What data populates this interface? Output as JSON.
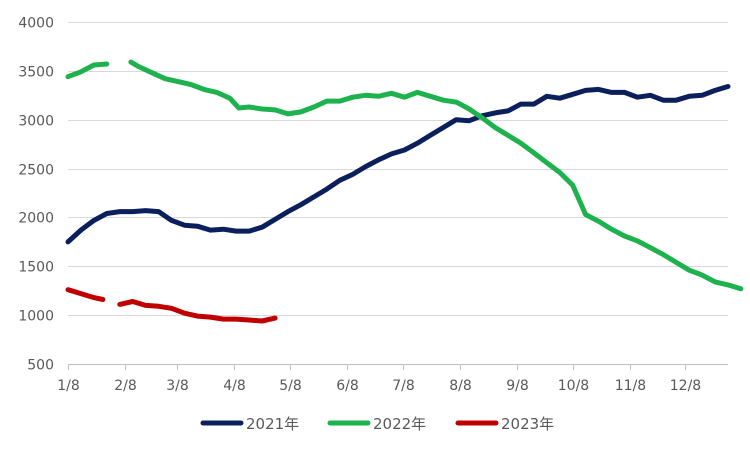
{
  "chart_data": {
    "type": "line",
    "title": "",
    "xlabel": "",
    "ylabel": "",
    "ylim": [
      500,
      4000
    ],
    "yticks": [
      500,
      1000,
      1500,
      2000,
      2500,
      3000,
      3500,
      4000
    ],
    "xlim": [
      0,
      51
    ],
    "xticks": [
      {
        "label": "1/8",
        "week": 0
      },
      {
        "label": "2/8",
        "week": 4.43
      },
      {
        "label": "3/8",
        "week": 8.43
      },
      {
        "label": "4/8",
        "week": 12.86
      },
      {
        "label": "5/8",
        "week": 17.14
      },
      {
        "label": "6/8",
        "week": 21.57
      },
      {
        "label": "7/8",
        "week": 25.86
      },
      {
        "label": "8/8",
        "week": 30.29
      },
      {
        "label": "9/8",
        "week": 34.71
      },
      {
        "label": "10/8",
        "week": 39.0
      },
      {
        "label": "11/8",
        "week": 43.43
      },
      {
        "label": "12/8",
        "week": 47.71
      }
    ],
    "grid": "horizontal",
    "legend_position": "bottom",
    "series": [
      {
        "name": "2021年",
        "color": "#0b1f5c",
        "segments": [
          [
            [
              0,
              1750
            ],
            [
              1,
              1870
            ],
            [
              2,
              1970
            ],
            [
              3,
              2040
            ],
            [
              4,
              2060
            ],
            [
              5,
              2060
            ],
            [
              6,
              2070
            ],
            [
              7,
              2060
            ],
            [
              8,
              1970
            ],
            [
              9,
              1920
            ],
            [
              10,
              1910
            ],
            [
              11,
              1870
            ],
            [
              12,
              1880
            ],
            [
              13,
              1860
            ],
            [
              14,
              1860
            ],
            [
              15,
              1900
            ],
            [
              16,
              1980
            ],
            [
              17,
              2060
            ],
            [
              18,
              2130
            ],
            [
              19,
              2210
            ],
            [
              20,
              2290
            ],
            [
              21,
              2380
            ],
            [
              22,
              2440
            ],
            [
              23,
              2520
            ],
            [
              24,
              2590
            ],
            [
              25,
              2650
            ],
            [
              26,
              2690
            ],
            [
              27,
              2760
            ],
            [
              28,
              2840
            ],
            [
              29,
              2920
            ],
            [
              30,
              3000
            ],
            [
              31,
              2990
            ],
            [
              32,
              3040
            ],
            [
              33,
              3070
            ],
            [
              34,
              3090
            ],
            [
              35,
              3160
            ],
            [
              36,
              3160
            ],
            [
              37,
              3240
            ],
            [
              38,
              3220
            ],
            [
              39,
              3260
            ],
            [
              40,
              3300
            ],
            [
              41,
              3310
            ],
            [
              42,
              3280
            ],
            [
              43,
              3280
            ],
            [
              44,
              3230
            ],
            [
              45,
              3250
            ],
            [
              46,
              3200
            ],
            [
              47,
              3200
            ],
            [
              48,
              3240
            ],
            [
              49,
              3250
            ],
            [
              50,
              3300
            ],
            [
              51,
              3340
            ]
          ]
        ]
      },
      {
        "name": "2022年",
        "color": "#1db24d",
        "segments": [
          [
            [
              0,
              3440
            ],
            [
              1,
              3490
            ],
            [
              2,
              3560
            ],
            [
              3,
              3570
            ]
          ],
          [
            [
              4.86,
              3590
            ],
            [
              5.5,
              3540
            ],
            [
              6.5,
              3480
            ],
            [
              7.5,
              3420
            ],
            [
              8.5,
              3390
            ],
            [
              9.5,
              3360
            ],
            [
              10.5,
              3310
            ],
            [
              11.5,
              3280
            ],
            [
              12.5,
              3220
            ],
            [
              13.2,
              3120
            ],
            [
              14,
              3130
            ],
            [
              15,
              3110
            ],
            [
              16,
              3100
            ],
            [
              17,
              3060
            ],
            [
              18,
              3080
            ],
            [
              19,
              3130
            ],
            [
              20,
              3190
            ],
            [
              21,
              3190
            ],
            [
              22,
              3230
            ],
            [
              23,
              3250
            ],
            [
              24,
              3240
            ],
            [
              25,
              3270
            ],
            [
              26,
              3230
            ],
            [
              27,
              3280
            ],
            [
              28,
              3240
            ],
            [
              29,
              3200
            ],
            [
              30,
              3180
            ],
            [
              31,
              3110
            ],
            [
              32,
              3020
            ],
            [
              33,
              2920
            ],
            [
              34,
              2840
            ],
            [
              35,
              2760
            ],
            [
              36,
              2660
            ],
            [
              37,
              2560
            ],
            [
              38,
              2460
            ],
            [
              39,
              2330
            ],
            [
              40,
              2030
            ],
            [
              41,
              1960
            ],
            [
              42,
              1880
            ],
            [
              43,
              1810
            ],
            [
              44,
              1760
            ],
            [
              45,
              1690
            ],
            [
              46,
              1620
            ],
            [
              47,
              1540
            ],
            [
              48,
              1460
            ],
            [
              49,
              1410
            ],
            [
              50,
              1340
            ],
            [
              51,
              1310
            ],
            [
              52,
              1270
            ]
          ]
        ]
      },
      {
        "name": "2023年",
        "color": "#c00000",
        "segments": [
          [
            [
              0,
              1260
            ],
            [
              1,
              1220
            ],
            [
              2,
              1180
            ],
            [
              2.7,
              1160
            ]
          ],
          [
            [
              4,
              1110
            ],
            [
              5,
              1140
            ],
            [
              6,
              1100
            ],
            [
              7,
              1090
            ],
            [
              8,
              1070
            ],
            [
              9,
              1020
            ],
            [
              10,
              990
            ],
            [
              11,
              980
            ],
            [
              12,
              960
            ],
            [
              13,
              960
            ],
            [
              14,
              950
            ],
            [
              15,
              940
            ],
            [
              16,
              970
            ]
          ]
        ]
      }
    ]
  }
}
